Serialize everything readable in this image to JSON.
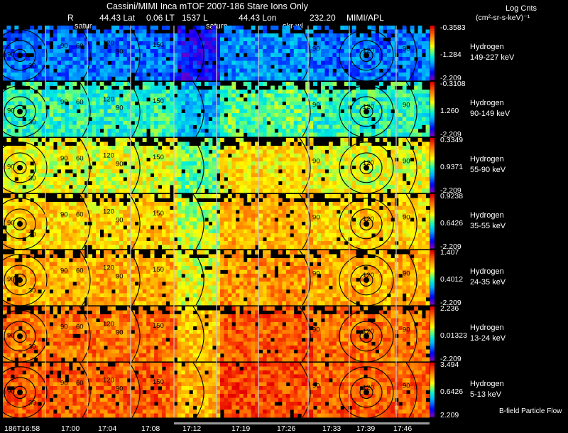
{
  "header": {
    "title": "Cassini/MIMI Inca mTOF  2007-186   Stare   Ions Only",
    "r_label": "R",
    "lat_value": "44.43 Lat",
    "lt_value": "0.06 LT",
    "l_value": "1537 L",
    "lon_value": "44.43 Lon",
    "extra_value": "232.20",
    "institution": "MIMI/APL",
    "units_title": "Log Cnts",
    "units_sub": "(cm²-sr-s-keV)⁻¹"
  },
  "target_labels": [
    "satur",
    "saturn",
    "skr-wl"
  ],
  "footer": {
    "legend": "B-field Particle Flow"
  },
  "chart_data": {
    "type": "heatmap",
    "title": "Cassini/MIMI Inca mTOF 2007-186 Stare Ions Only",
    "x_ticks": [
      "186T16:58",
      "17:00",
      "17:04",
      "17:08",
      "17:12",
      "17:19",
      "17:26",
      "17:33",
      "17:39",
      "17:46"
    ],
    "colorscale": "rainbow (blue-cyan-yellow-orange-red)",
    "contour_labels": [
      "30",
      "60",
      "90",
      "120",
      "150"
    ],
    "panels": [
      {
        "species": "Hydrogen",
        "energy": "149-227 keV",
        "cb_max": "-0.3583",
        "cb_mid": "-1.284",
        "cb_min": "-2.209"
      },
      {
        "species": "Hydrogen",
        "energy": "90-149 keV",
        "cb_max": "-0.3108",
        "cb_mid": "1.260",
        "cb_min": "-2.209"
      },
      {
        "species": "Hydrogen",
        "energy": "55-90 keV",
        "cb_max": "0.3349",
        "cb_mid": "0.9371",
        "cb_min": "-2.209"
      },
      {
        "species": "Hydrogen",
        "energy": "35-55 keV",
        "cb_max": "0.9238",
        "cb_mid": "0.6426",
        "cb_min": "-2.209"
      },
      {
        "species": "Hydrogen",
        "energy": "24-35 keV",
        "cb_max": "1.407",
        "cb_mid": "0.4012",
        "cb_min": "-2.209"
      },
      {
        "species": "Hydrogen",
        "energy": "13-24 keV",
        "cb_max": "2.236",
        "cb_mid": "0.01323",
        "cb_min": "-2.209"
      },
      {
        "species": "Hydrogen",
        "energy": "5-13 keV",
        "cb_max": "3.494",
        "cb_mid": "0.6426",
        "cb_min": "2.209"
      }
    ]
  }
}
